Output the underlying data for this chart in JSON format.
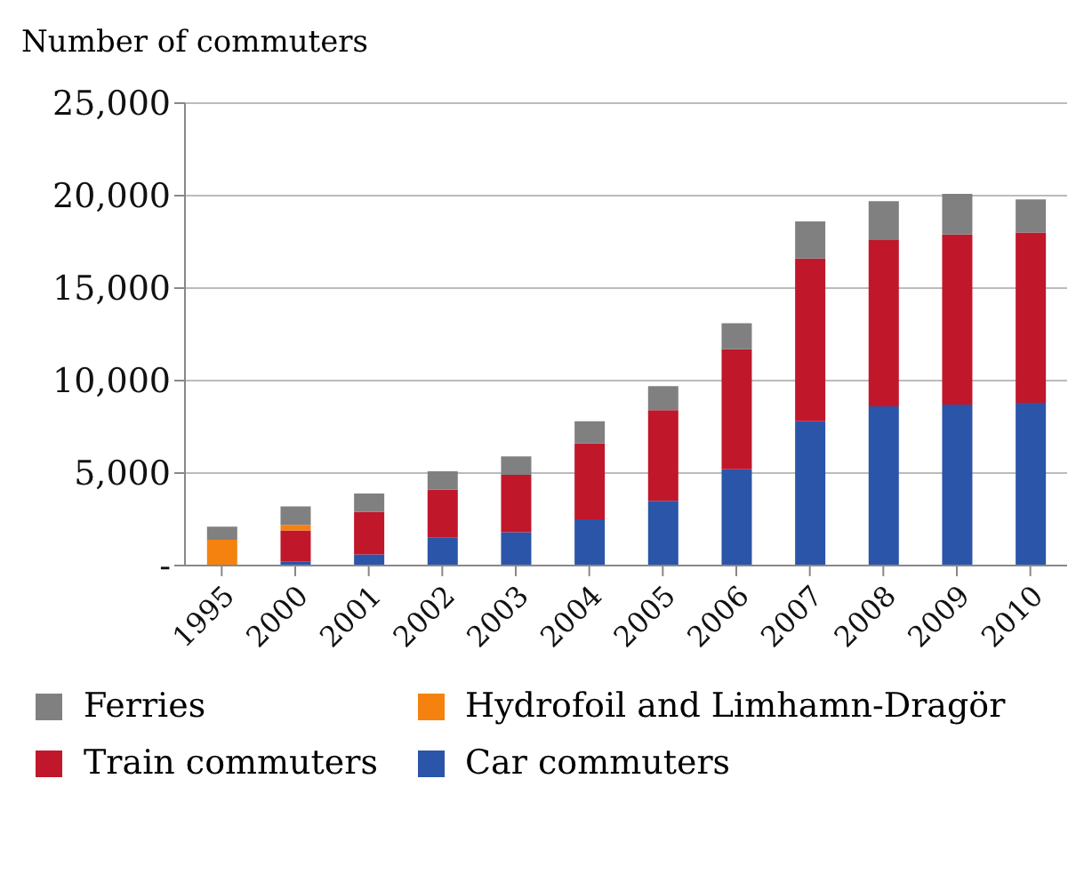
{
  "chart_data": {
    "type": "bar",
    "ylabel": "Number of commuters",
    "categories": [
      "1995",
      "2000",
      "2001",
      "2002",
      "2003",
      "2004",
      "2005",
      "2006",
      "2007",
      "2008",
      "2009",
      "2010"
    ],
    "stacked": true,
    "grid": "y",
    "legend": "bottom",
    "ylim": [
      0,
      25000
    ],
    "yticks": [
      {
        "value": 0,
        "label": "-"
      },
      {
        "value": 5000,
        "label": "5,000"
      },
      {
        "value": 10000,
        "label": "10,000"
      },
      {
        "value": 15000,
        "label": "15,000"
      },
      {
        "value": 20000,
        "label": "20,000"
      },
      {
        "value": 25000,
        "label": "25,000"
      }
    ],
    "series": [
      {
        "name": "Car commuters",
        "color": "#2a55a8",
        "values": [
          0,
          200,
          600,
          1500,
          1800,
          2500,
          3500,
          5200,
          7800,
          8600,
          8700,
          8800
        ]
      },
      {
        "name": "Train commuters",
        "color": "#c0172b",
        "values": [
          0,
          1700,
          2300,
          2600,
          3100,
          4100,
          4900,
          6500,
          8800,
          9000,
          9200,
          9200
        ]
      },
      {
        "name": "Hydrofoil and Limhamn-Dragör",
        "color": "#f5820f",
        "values": [
          1400,
          300,
          0,
          0,
          0,
          0,
          0,
          0,
          0,
          0,
          0,
          0
        ]
      },
      {
        "name": "Ferries",
        "color": "#808080",
        "values": [
          700,
          1000,
          1000,
          1000,
          1000,
          1200,
          1300,
          1400,
          2000,
          2100,
          2200,
          1800
        ]
      }
    ]
  }
}
